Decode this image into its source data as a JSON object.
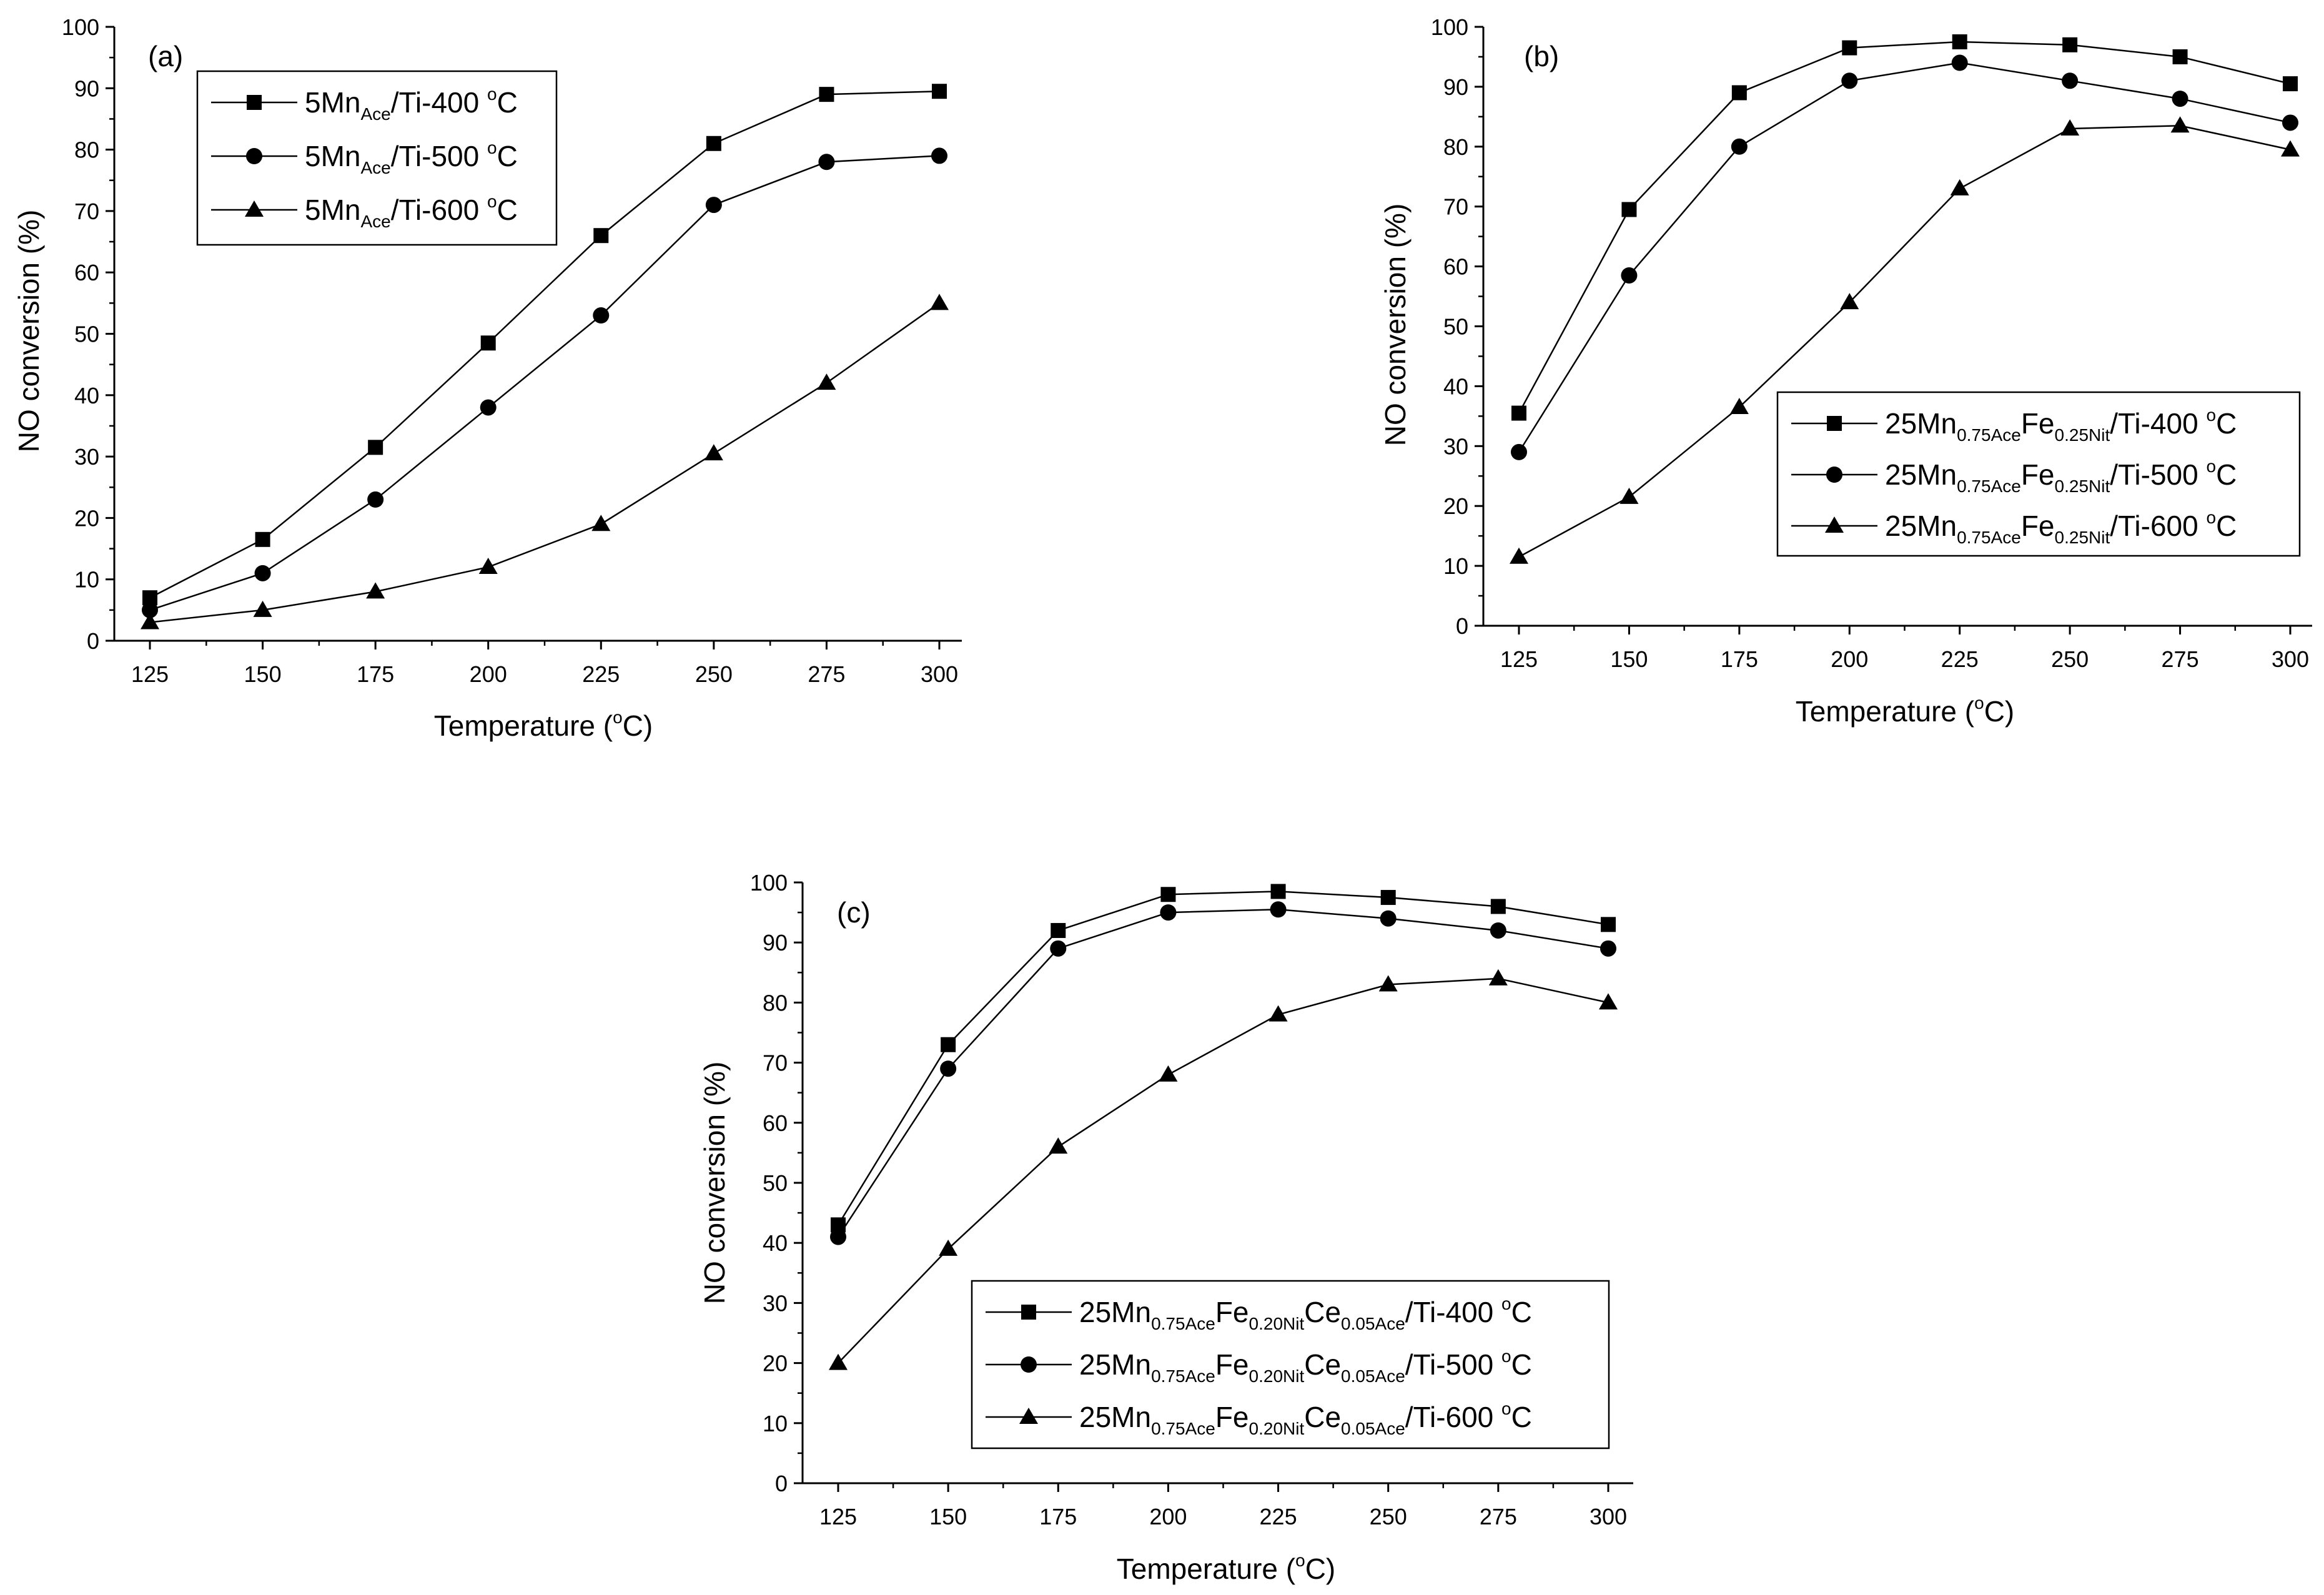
{
  "chart_data": [
    {
      "type": "line",
      "panel": "(a)",
      "xlabel": "Temperature (°C)",
      "xlabel_parts": {
        "prefix": "Temperature (",
        "sup": "o",
        "suffix": "C)"
      },
      "ylabel": "NO conversion (%)",
      "x": [
        125,
        150,
        175,
        200,
        225,
        250,
        275,
        300
      ],
      "xlim": [
        120,
        305
      ],
      "ylim": [
        0,
        100
      ],
      "xticks": [
        "125",
        "150",
        "175",
        "200",
        "225",
        "250",
        "275",
        "300"
      ],
      "yticks": [
        "0",
        "10",
        "20",
        "30",
        "40",
        "50",
        "60",
        "70",
        "80",
        "90",
        "100"
      ],
      "legend_position": "top-left",
      "series": [
        {
          "name": "5MnAce/Ti-400 °C",
          "marker": "square",
          "values": [
            7,
            16.5,
            31.5,
            48.5,
            66,
            81,
            89,
            89.5
          ],
          "label_parts": [
            [
              "5Mn",
              ""
            ],
            [
              "Ace",
              "sub"
            ],
            [
              "/Ti-400 ",
              ""
            ],
            [
              "o",
              "sup"
            ],
            [
              "C",
              ""
            ]
          ]
        },
        {
          "name": "5MnAce/Ti-500 °C",
          "marker": "circle",
          "values": [
            5,
            11,
            23,
            38,
            53,
            71,
            78,
            79
          ],
          "label_parts": [
            [
              "5Mn",
              ""
            ],
            [
              "Ace",
              "sub"
            ],
            [
              "/Ti-500 ",
              ""
            ],
            [
              "o",
              "sup"
            ],
            [
              "C",
              ""
            ]
          ]
        },
        {
          "name": "5MnAce/Ti-600 °C",
          "marker": "triangle",
          "values": [
            3,
            5,
            8,
            12,
            19,
            30.5,
            42,
            55
          ],
          "label_parts": [
            [
              "5Mn",
              ""
            ],
            [
              "Ace",
              "sub"
            ],
            [
              "/Ti-600 ",
              ""
            ],
            [
              "o",
              "sup"
            ],
            [
              "C",
              ""
            ]
          ]
        }
      ]
    },
    {
      "type": "line",
      "panel": "(b)",
      "xlabel": "Temperature (°C)",
      "xlabel_parts": {
        "prefix": "Temperature (",
        "sup": "o",
        "suffix": "C)"
      },
      "ylabel": "NO conversion (%)",
      "x": [
        125,
        150,
        175,
        200,
        225,
        250,
        275,
        300
      ],
      "xlim": [
        120,
        305
      ],
      "ylim": [
        0,
        100
      ],
      "xticks": [
        "125",
        "150",
        "175",
        "200",
        "225",
        "250",
        "275",
        "300"
      ],
      "yticks": [
        "0",
        "10",
        "20",
        "30",
        "40",
        "50",
        "60",
        "70",
        "80",
        "90",
        "100"
      ],
      "legend_position": "center-right",
      "series": [
        {
          "name": "25Mn0.75AceFe0.25Nit/Ti-400 °C",
          "marker": "square",
          "values": [
            35.5,
            69.5,
            89,
            96.5,
            97.5,
            97,
            95,
            90.5
          ],
          "label_parts": [
            [
              "25Mn",
              ""
            ],
            [
              "0.75Ace",
              "sub"
            ],
            [
              "Fe",
              ""
            ],
            [
              "0.25Nit",
              "sub"
            ],
            [
              "/Ti-400 ",
              ""
            ],
            [
              "o",
              "sup"
            ],
            [
              "C",
              ""
            ]
          ]
        },
        {
          "name": "25Mn0.75AceFe0.25Nit/Ti-500 °C",
          "marker": "circle",
          "values": [
            29,
            58.5,
            80,
            91,
            94,
            91,
            88,
            84
          ],
          "label_parts": [
            [
              "25Mn",
              ""
            ],
            [
              "0.75Ace",
              "sub"
            ],
            [
              "Fe",
              ""
            ],
            [
              "0.25Nit",
              "sub"
            ],
            [
              "/Ti-500 ",
              ""
            ],
            [
              "o",
              "sup"
            ],
            [
              "C",
              ""
            ]
          ]
        },
        {
          "name": "25Mn0.75AceFe0.25Nit/Ti-600 °C",
          "marker": "triangle",
          "values": [
            11.5,
            21.5,
            36.5,
            54,
            73,
            83,
            83.5,
            79.5
          ],
          "label_parts": [
            [
              "25Mn",
              ""
            ],
            [
              "0.75Ace",
              "sub"
            ],
            [
              "Fe",
              ""
            ],
            [
              "0.25Nit",
              "sub"
            ],
            [
              "/Ti-600 ",
              ""
            ],
            [
              "o",
              "sup"
            ],
            [
              "C",
              ""
            ]
          ]
        }
      ]
    },
    {
      "type": "line",
      "panel": "(c)",
      "xlabel": "Temperature (°C)",
      "xlabel_parts": {
        "prefix": "Temperature (",
        "sup": "o",
        "suffix": "C)"
      },
      "ylabel": "NO conversion (%)",
      "x": [
        125,
        150,
        175,
        200,
        225,
        250,
        275,
        300
      ],
      "xlim": [
        120,
        305
      ],
      "ylim": [
        0,
        100
      ],
      "xticks": [
        "125",
        "150",
        "175",
        "200",
        "225",
        "250",
        "275",
        "300"
      ],
      "yticks": [
        "0",
        "10",
        "20",
        "30",
        "40",
        "50",
        "60",
        "70",
        "80",
        "90",
        "100"
      ],
      "legend_position": "bottom-right",
      "series": [
        {
          "name": "25Mn0.75AceFe0.20NitCe0.05Ace/Ti-400 °C",
          "marker": "square",
          "values": [
            43,
            73,
            92,
            98,
            98.5,
            97.5,
            96,
            93
          ],
          "label_parts": [
            [
              "25Mn",
              ""
            ],
            [
              "0.75Ace",
              "sub"
            ],
            [
              "Fe",
              ""
            ],
            [
              "0.20Nit",
              "sub"
            ],
            [
              "Ce",
              ""
            ],
            [
              "0.05Ace",
              "sub"
            ],
            [
              "/Ti-400 ",
              ""
            ],
            [
              "o",
              "sup"
            ],
            [
              "C",
              ""
            ]
          ]
        },
        {
          "name": "25Mn0.75AceFe0.20NitCe0.05Ace/Ti-500 °C",
          "marker": "circle",
          "values": [
            41,
            69,
            89,
            95,
            95.5,
            94,
            92,
            89
          ],
          "label_parts": [
            [
              "25Mn",
              ""
            ],
            [
              "0.75Ace",
              "sub"
            ],
            [
              "Fe",
              ""
            ],
            [
              "0.20Nit",
              "sub"
            ],
            [
              "Ce",
              ""
            ],
            [
              "0.05Ace",
              "sub"
            ],
            [
              "/Ti-500 ",
              ""
            ],
            [
              "o",
              "sup"
            ],
            [
              "C",
              ""
            ]
          ]
        },
        {
          "name": "25Mn0.75AceFe0.20NitCe0.05Ace/Ti-600 °C",
          "marker": "triangle",
          "values": [
            20,
            39,
            56,
            68,
            78,
            83,
            84,
            80
          ],
          "label_parts": [
            [
              "25Mn",
              ""
            ],
            [
              "0.75Ace",
              "sub"
            ],
            [
              "Fe",
              ""
            ],
            [
              "0.20Nit",
              "sub"
            ],
            [
              "Ce",
              ""
            ],
            [
              "0.05Ace",
              "sub"
            ],
            [
              "/Ti-600 ",
              ""
            ],
            [
              "o",
              "sup"
            ],
            [
              "C",
              ""
            ]
          ]
        }
      ]
    }
  ]
}
